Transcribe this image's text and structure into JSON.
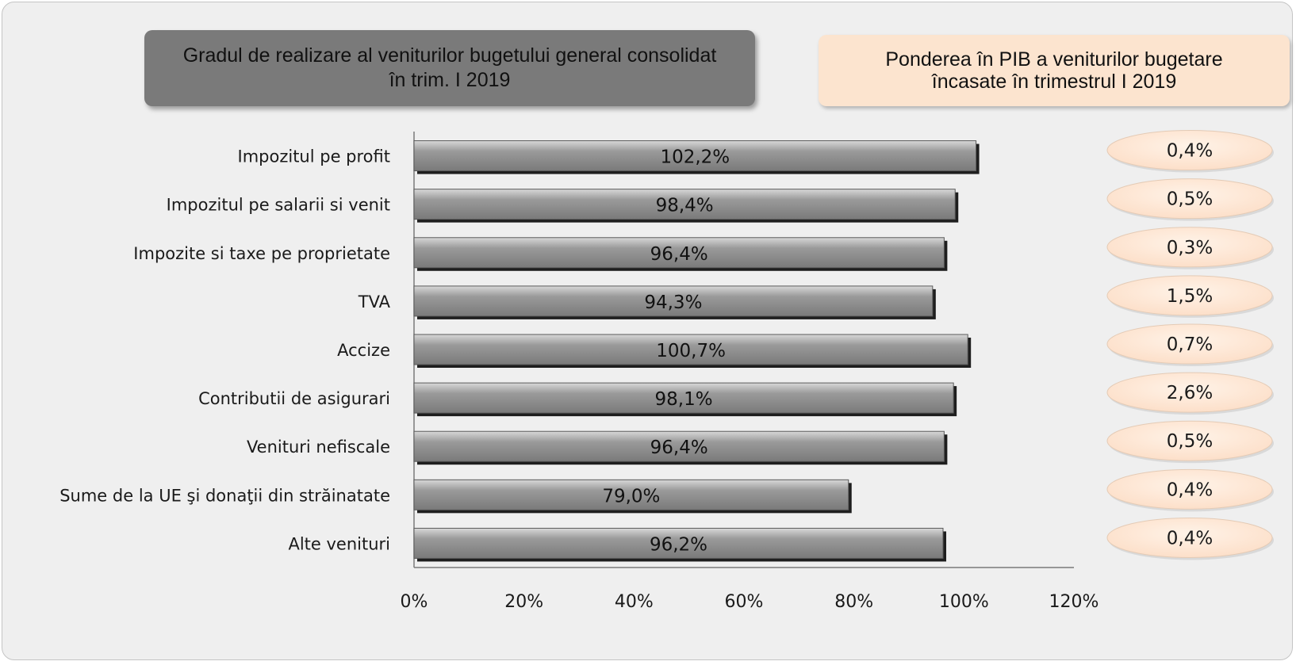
{
  "chart_data": {
    "type": "bar",
    "orientation": "horizontal",
    "title": "Gradul de realizare al veniturilor bugetului general consolidat în trim. I 2019",
    "categories": [
      "Impozitul pe profit",
      "Impozitul pe salarii si venit",
      "Impozite si taxe pe proprietate",
      "TVA",
      "Accize",
      "Contributii de asigurari",
      "Venituri nefiscale",
      "Sume de la UE şi donaţii din străinatate",
      "Alte venituri"
    ],
    "values": [
      102.2,
      98.4,
      96.4,
      94.3,
      100.7,
      98.1,
      96.4,
      79.0,
      96.2
    ],
    "value_labels": [
      "102,2%",
      "98,4%",
      "96,4%",
      "94,3%",
      "100,7%",
      "98,1%",
      "96,4%",
      "79,0%",
      "96,2%"
    ],
    "x_ticks": [
      "0%",
      "20%",
      "40%",
      "60%",
      "80%",
      "100%",
      "120%"
    ],
    "xlim": [
      0,
      120
    ],
    "xlabel": "",
    "ylabel": "",
    "grid": false,
    "bar_color": "#8c8c8c",
    "side_panel": {
      "title": "Ponderea în PIB a veniturilor bugetare încasate în trimestrul I 2019",
      "values": [
        0.4,
        0.5,
        0.3,
        1.5,
        0.7,
        2.6,
        0.5,
        0.4,
        0.4
      ],
      "value_labels": [
        "0,4%",
        "0,5%",
        "0,3%",
        "1,5%",
        "0,7%",
        "2,6%",
        "0,5%",
        "0,4%",
        "0,4%"
      ],
      "color": "#fce4cf"
    }
  }
}
